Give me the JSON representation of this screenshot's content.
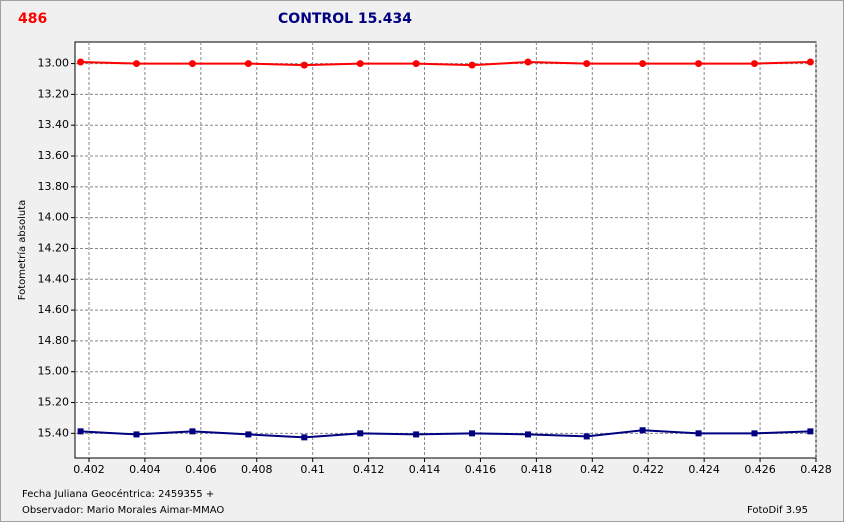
{
  "chart_data": {
    "type": "line",
    "object_label": "486",
    "title": "CONTROL 15.434",
    "ylabel": "Fotometría absoluta",
    "xlabel": "Fecha Juliana Geocéntrica: 2459355 +",
    "observer": "Observador: Mario Morales Aimar-MMAO",
    "software": "FotoDif 3.95",
    "x": [
      0.4017,
      0.4037,
      0.4057,
      0.4077,
      0.4097,
      0.4117,
      0.4137,
      0.4157,
      0.4177,
      0.4198,
      0.4218,
      0.4238,
      0.4258,
      0.4278
    ],
    "series": [
      {
        "color": "#ff0000",
        "marker": "circle",
        "values": [
          12.99,
          13.0,
          13.0,
          13.0,
          13.01,
          13.0,
          13.0,
          13.01,
          12.99,
          13.0,
          13.0,
          13.0,
          13.0,
          12.99
        ]
      },
      {
        "color": "#000080",
        "marker": "square",
        "values": [
          15.387,
          15.407,
          15.387,
          15.407,
          15.426,
          15.4,
          15.407,
          15.4,
          15.407,
          15.42,
          15.38,
          15.4,
          15.4,
          15.387
        ]
      }
    ],
    "xlim": [
      0.4015,
      0.428
    ],
    "ylim": [
      12.86,
      15.56
    ],
    "y_inverted": true,
    "xticks": [
      0.402,
      0.404,
      0.406,
      0.408,
      0.41,
      0.412,
      0.414,
      0.416,
      0.418,
      0.42,
      0.422,
      0.424,
      0.426,
      0.428
    ],
    "yticks": [
      {
        "value": 13.0,
        "label": "13.00"
      },
      {
        "value": 13.2,
        "label": "13.20"
      },
      {
        "value": 13.4,
        "label": "13.40"
      },
      {
        "value": 13.6,
        "label": "13.60"
      },
      {
        "value": 13.8,
        "label": "13.80"
      },
      {
        "value": 14.0,
        "label": "14.00"
      },
      {
        "value": 14.2,
        "label": "14.20"
      },
      {
        "value": 14.4,
        "label": "14.40"
      },
      {
        "value": 14.6,
        "label": "14.60"
      },
      {
        "value": 14.8,
        "label": "14.80"
      },
      {
        "value": 15.0,
        "label": "15.00"
      },
      {
        "value": 15.2,
        "label": "15.20"
      },
      {
        "value": 15.4,
        "label": "15.40"
      }
    ],
    "grid": true
  }
}
